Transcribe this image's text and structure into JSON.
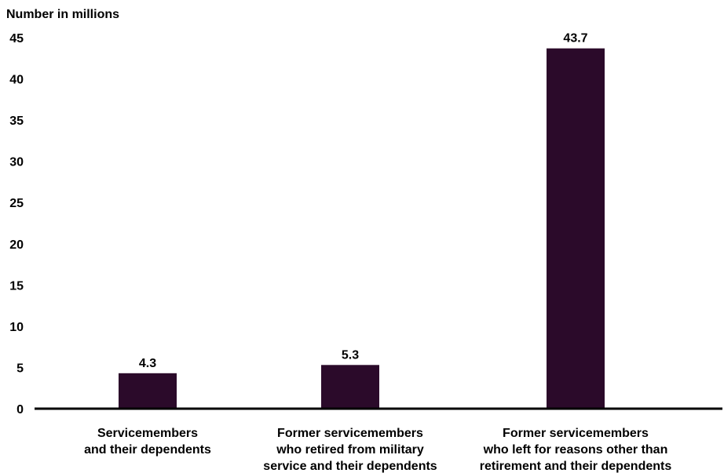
{
  "chart_data": {
    "type": "bar",
    "title": "",
    "ylabel": "Number in millions",
    "xlabel": "",
    "ylim": [
      0,
      45
    ],
    "yticks": [
      0,
      5,
      10,
      15,
      20,
      25,
      30,
      35,
      40,
      45
    ],
    "grid": false,
    "categories": [
      [
        "Servicemembers",
        "and their dependents"
      ],
      [
        "Former servicemembers",
        "who retired from military",
        "service and their dependents"
      ],
      [
        "Former servicemembers",
        "who left for reasons other than",
        "retirement and their dependents"
      ]
    ],
    "values": [
      4.3,
      5.3,
      43.7
    ],
    "data_labels": [
      "4.3",
      "5.3",
      "43.7"
    ],
    "colors": {
      "bar": "#2b0a2a",
      "axis": "#000000",
      "text": "#000000"
    }
  }
}
